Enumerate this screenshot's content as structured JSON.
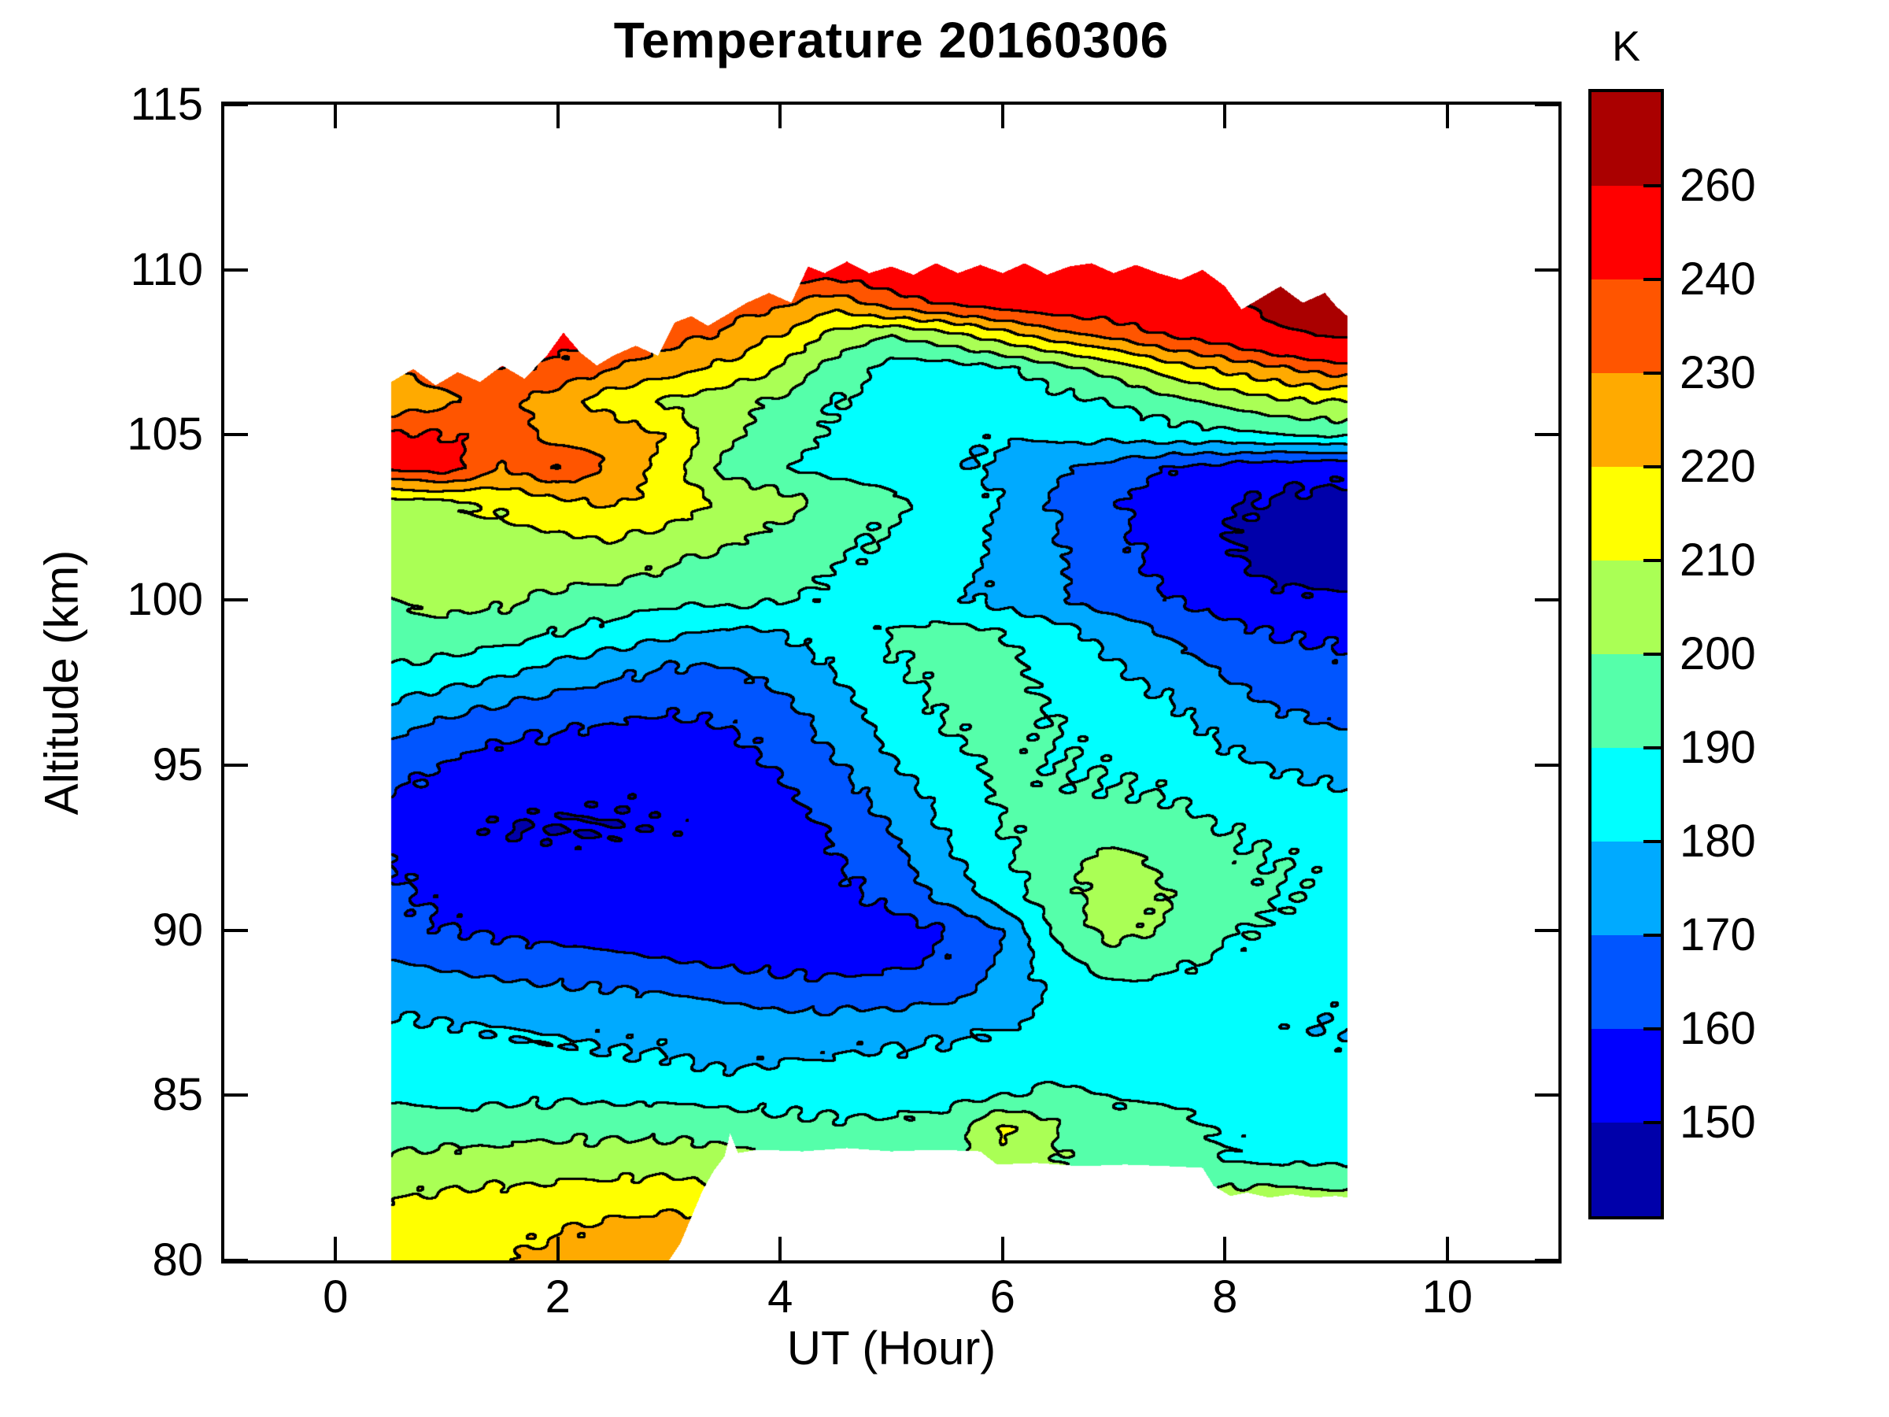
{
  "chart_data": {
    "type": "heatmap",
    "style": "filled_contour",
    "title": "Temperature 20160306",
    "xlabel": "UT (Hour)",
    "ylabel": "Altitude (km)",
    "xlim": [
      -1,
      11
    ],
    "ylim": [
      80,
      115
    ],
    "xticks": [
      0,
      2,
      4,
      6,
      8,
      10
    ],
    "yticks": [
      80,
      85,
      90,
      95,
      100,
      105,
      110,
      115
    ],
    "grid_on": false,
    "levels": [
      150,
      160,
      170,
      180,
      190,
      200,
      210,
      220,
      230,
      240,
      260
    ],
    "band_colors": [
      "#0000AA",
      "#0000FF",
      "#0055FF",
      "#00AAFF",
      "#00FFFF",
      "#55FFAA",
      "#AAFF55",
      "#FFFF00",
      "#FFAA00",
      "#FF5500",
      "#FF0000",
      "#AA0000"
    ],
    "contour_line_color": "#000000",
    "colorbar": {
      "label": "K",
      "position": "right",
      "tick_values": [
        150,
        160,
        170,
        180,
        190,
        200,
        210,
        220,
        230,
        240,
        260
      ]
    },
    "domain": {
      "x_range": [
        0.5,
        9.1
      ],
      "top_boundary": {
        "x": [
          0.5,
          0.7,
          0.9,
          1.1,
          1.3,
          1.5,
          1.7,
          1.9,
          2.05,
          2.2,
          2.35,
          2.5,
          2.7,
          2.9,
          3.05,
          3.2,
          3.35,
          3.5,
          3.7,
          3.9,
          4.1,
          4.25,
          4.4,
          4.6,
          4.8,
          5.0,
          5.2,
          5.4,
          5.6,
          5.8,
          6.0,
          6.2,
          6.4,
          6.6,
          6.8,
          7.0,
          7.2,
          7.4,
          7.6,
          7.8,
          8.0,
          8.15,
          8.3,
          8.5,
          8.7,
          8.9,
          9.0,
          9.1
        ],
        "z": [
          106.6,
          107.0,
          106.5,
          106.9,
          106.6,
          107.1,
          106.7,
          107.4,
          108.1,
          107.5,
          107.1,
          107.4,
          107.7,
          107.4,
          108.4,
          108.6,
          108.3,
          108.6,
          109.0,
          109.3,
          109.0,
          110.1,
          109.9,
          110.25,
          109.9,
          110.1,
          109.85,
          110.2,
          109.9,
          110.15,
          109.9,
          110.2,
          109.85,
          110.1,
          110.2,
          109.9,
          110.15,
          109.9,
          109.7,
          110.0,
          109.5,
          108.8,
          109.1,
          109.5,
          109.0,
          109.3,
          108.9,
          108.6
        ]
      },
      "bottom_boundary": {
        "x": [
          0.5,
          3.0,
          3.1,
          3.2,
          3.3,
          3.4,
          3.5,
          3.55,
          3.62,
          3.8,
          4.2,
          4.6,
          5.0,
          5.4,
          5.8,
          5.95,
          6.3,
          6.7,
          7.1,
          7.5,
          7.8,
          7.9,
          8.05,
          8.2,
          8.4,
          8.6,
          8.8,
          9.0,
          9.1
        ],
        "z": [
          80,
          80,
          80.5,
          81.3,
          82.1,
          82.7,
          83.15,
          83.85,
          83.25,
          83.35,
          83.3,
          83.4,
          83.3,
          83.35,
          83.3,
          82.9,
          82.95,
          82.85,
          82.9,
          82.85,
          82.8,
          82.25,
          81.95,
          82.05,
          81.9,
          82.0,
          81.9,
          81.95,
          81.9
        ]
      }
    },
    "grid": {
      "x": [
        0.5,
        1,
        1.5,
        2,
        2.5,
        3,
        3.5,
        4,
        4.5,
        5,
        5.5,
        6,
        6.5,
        7,
        7.5,
        8,
        8.5,
        9
      ],
      "y": [
        80,
        81,
        82,
        83,
        84,
        85,
        86,
        87,
        88,
        89,
        90,
        91,
        92,
        93,
        94,
        95,
        96,
        97,
        98,
        99,
        100,
        101,
        102,
        103,
        104,
        105,
        106,
        107,
        108,
        109,
        110,
        111
      ],
      "values": [
        [
          217,
          218,
          219,
          224,
          226,
          228,
          224,
          222,
          220,
          218,
          217,
          216,
          215,
          214,
          213,
          212,
          211,
          210
        ],
        [
          214,
          217,
          216,
          219,
          222,
          224,
          220,
          218,
          216,
          215,
          214,
          213,
          212,
          212,
          211,
          210,
          210,
          209
        ],
        [
          209,
          211,
          212,
          213,
          214,
          215,
          212,
          210,
          208,
          207,
          206,
          205,
          205,
          204,
          204,
          203,
          203,
          202
        ],
        [
          202,
          203,
          204,
          205,
          205,
          206,
          204,
          201,
          198,
          197,
          196,
          207,
          200,
          196,
          194,
          190,
          189,
          188
        ],
        [
          195,
          195,
          196,
          197,
          197,
          197,
          195,
          193,
          192,
          192,
          193,
          212,
          200,
          194,
          193,
          189,
          188,
          186
        ],
        [
          188,
          187,
          187,
          188,
          188,
          187,
          187,
          186,
          186,
          186,
          187,
          189,
          193,
          189,
          188,
          186,
          185,
          184
        ],
        [
          184,
          183,
          182,
          182,
          181,
          181,
          178,
          180,
          181,
          182,
          183,
          184,
          186,
          185,
          184,
          183,
          183,
          182
        ],
        [
          182,
          181,
          180,
          179,
          178,
          177,
          176,
          175,
          176,
          177,
          178,
          180,
          182,
          183,
          182,
          181,
          181,
          180
        ],
        [
          177,
          175,
          174,
          173,
          172,
          170,
          168,
          166,
          165,
          166,
          168,
          174,
          182,
          185,
          186,
          184,
          183,
          182
        ],
        [
          171,
          168,
          166,
          164,
          163,
          161,
          159,
          157,
          156,
          158,
          161,
          172,
          186,
          196,
          192,
          188,
          186,
          185
        ],
        [
          163,
          160,
          158,
          156,
          155,
          153,
          152,
          151,
          152,
          155,
          160,
          170,
          193,
          204,
          198,
          191,
          189,
          187
        ],
        [
          162,
          158,
          155,
          154,
          153,
          153,
          152,
          153,
          157,
          163,
          173,
          185,
          196,
          206,
          200,
          193,
          190,
          188
        ],
        [
          160,
          156,
          154,
          153,
          152,
          152,
          152,
          154,
          159,
          166,
          177,
          188,
          196,
          204,
          198,
          192,
          190,
          188
        ],
        [
          158,
          153,
          150,
          150,
          150,
          151,
          152,
          155,
          161,
          170,
          181,
          190,
          193,
          196,
          194,
          190,
          188,
          186
        ],
        [
          160,
          155,
          152,
          151,
          151,
          152,
          154,
          158,
          165,
          174,
          184,
          191,
          191,
          191,
          190,
          186,
          184,
          182
        ],
        [
          165,
          159,
          156,
          155,
          154,
          154,
          156,
          161,
          169,
          179,
          187,
          192,
          190,
          189,
          187,
          182,
          179,
          176
        ],
        [
          172,
          166,
          162,
          160,
          158,
          157,
          159,
          164,
          173,
          183,
          190,
          193,
          190,
          187,
          184,
          178,
          174,
          171
        ],
        [
          181,
          176,
          172,
          168,
          165,
          163,
          164,
          169,
          177,
          186,
          192,
          193,
          189,
          184,
          180,
          173,
          168,
          166
        ],
        [
          190,
          188,
          184,
          178,
          174,
          170,
          170,
          174,
          181,
          189,
          193,
          192,
          187,
          181,
          175,
          168,
          164,
          162
        ],
        [
          196,
          196,
          194,
          190,
          186,
          182,
          178,
          180,
          185,
          191,
          193,
          190,
          184,
          176,
          169,
          163,
          159,
          158
        ],
        [
          200,
          204,
          202,
          198,
          196,
          192,
          193,
          191,
          188,
          185,
          182,
          177,
          171,
          165,
          160,
          156,
          152,
          151
        ],
        [
          204,
          205,
          205,
          204,
          204,
          200,
          196,
          194,
          190,
          187,
          184,
          178,
          171,
          164,
          157,
          152,
          147,
          146
        ],
        [
          206,
          207,
          208,
          210,
          212,
          208,
          203,
          198,
          193,
          189,
          185,
          178,
          170,
          162,
          155,
          150,
          147,
          146
        ],
        [
          208,
          210,
          212,
          218,
          222,
          216,
          209,
          204,
          197,
          192,
          187,
          179,
          169,
          161,
          155,
          151,
          149,
          148
        ],
        [
          242,
          246,
          230,
          240,
          228,
          215,
          196,
          190,
          186,
          184,
          182,
          178,
          172,
          166,
          160,
          156,
          153,
          152
        ],
        [
          242,
          240,
          236,
          226,
          228,
          218,
          202,
          196,
          188,
          184,
          182,
          181,
          182,
          184,
          186,
          188,
          190,
          192
        ],
        [
          222,
          228,
          234,
          224,
          214,
          208,
          204,
          198,
          190,
          186,
          184,
          184,
          187,
          190,
          196,
          202,
          208,
          210
        ],
        [
          230,
          235,
          240,
          238,
          230,
          224,
          218,
          210,
          196,
          186,
          185,
          188,
          196,
          205,
          215,
          222,
          228,
          235
        ],
        [
          235,
          238,
          242,
          245,
          240,
          234,
          228,
          220,
          206,
          200,
          206,
          216,
          226,
          232,
          240,
          246,
          258,
          262
        ],
        [
          240,
          242,
          245,
          248,
          246,
          240,
          236,
          232,
          224,
          236,
          242,
          246,
          248,
          250,
          256,
          258,
          266,
          265
        ],
        [
          245,
          246,
          248,
          250,
          248,
          246,
          242,
          248,
          246,
          248,
          253,
          251,
          253,
          256,
          259,
          251,
          266,
          264
        ],
        [
          248,
          248,
          250,
          252,
          250,
          248,
          246,
          250,
          248,
          250,
          254,
          252,
          254,
          257,
          260,
          252,
          265,
          266
        ]
      ]
    }
  }
}
